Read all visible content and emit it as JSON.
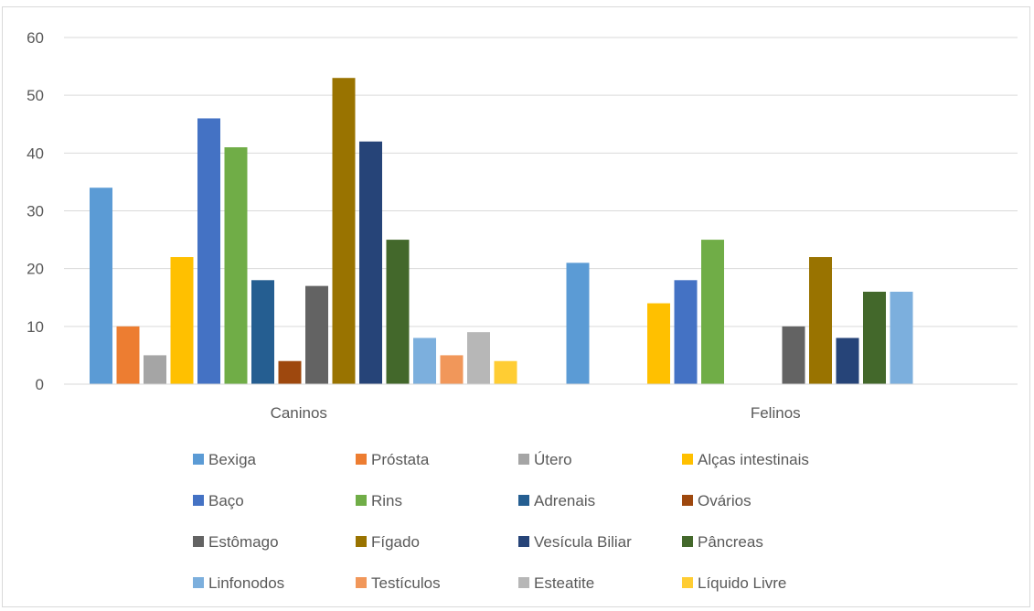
{
  "chart_data": {
    "type": "bar",
    "categories": [
      "Caninos",
      "Felinos"
    ],
    "ylim": [
      0,
      60
    ],
    "yticks": [
      0,
      10,
      20,
      30,
      40,
      50,
      60
    ],
    "grid": true,
    "legend_position": "bottom",
    "series": [
      {
        "name": "Bexiga",
        "color": "#5b9bd5",
        "values": [
          34,
          21
        ]
      },
      {
        "name": "Próstata",
        "color": "#ed7d31",
        "values": [
          10,
          0
        ]
      },
      {
        "name": "Útero",
        "color": "#a5a5a5",
        "values": [
          5,
          0
        ]
      },
      {
        "name": "Alças intestinais",
        "color": "#ffc000",
        "values": [
          22,
          14
        ]
      },
      {
        "name": "Baço",
        "color": "#4472c4",
        "values": [
          46,
          18
        ]
      },
      {
        "name": "Rins",
        "color": "#70ad47",
        "values": [
          41,
          25
        ]
      },
      {
        "name": "Adrenais",
        "color": "#255e91",
        "values": [
          18,
          0
        ]
      },
      {
        "name": "Ovários",
        "color": "#9e480e",
        "values": [
          4,
          0
        ]
      },
      {
        "name": "Estômago",
        "color": "#636363",
        "values": [
          17,
          10
        ]
      },
      {
        "name": "Fígado",
        "color": "#997300",
        "values": [
          53,
          22
        ]
      },
      {
        "name": "Vesícula Biliar",
        "color": "#264478",
        "values": [
          42,
          8
        ]
      },
      {
        "name": "Pâncreas",
        "color": "#43682b",
        "values": [
          25,
          16
        ]
      },
      {
        "name": "Linfonodos",
        "color": "#7cafdd",
        "values": [
          8,
          16
        ]
      },
      {
        "name": "Testículos",
        "color": "#f1975a",
        "values": [
          5,
          0
        ]
      },
      {
        "name": "Esteatite",
        "color": "#b7b7b7",
        "values": [
          9,
          0
        ]
      },
      {
        "name": "Líquido Livre",
        "color": "#ffcd33",
        "values": [
          4,
          0
        ]
      }
    ]
  }
}
